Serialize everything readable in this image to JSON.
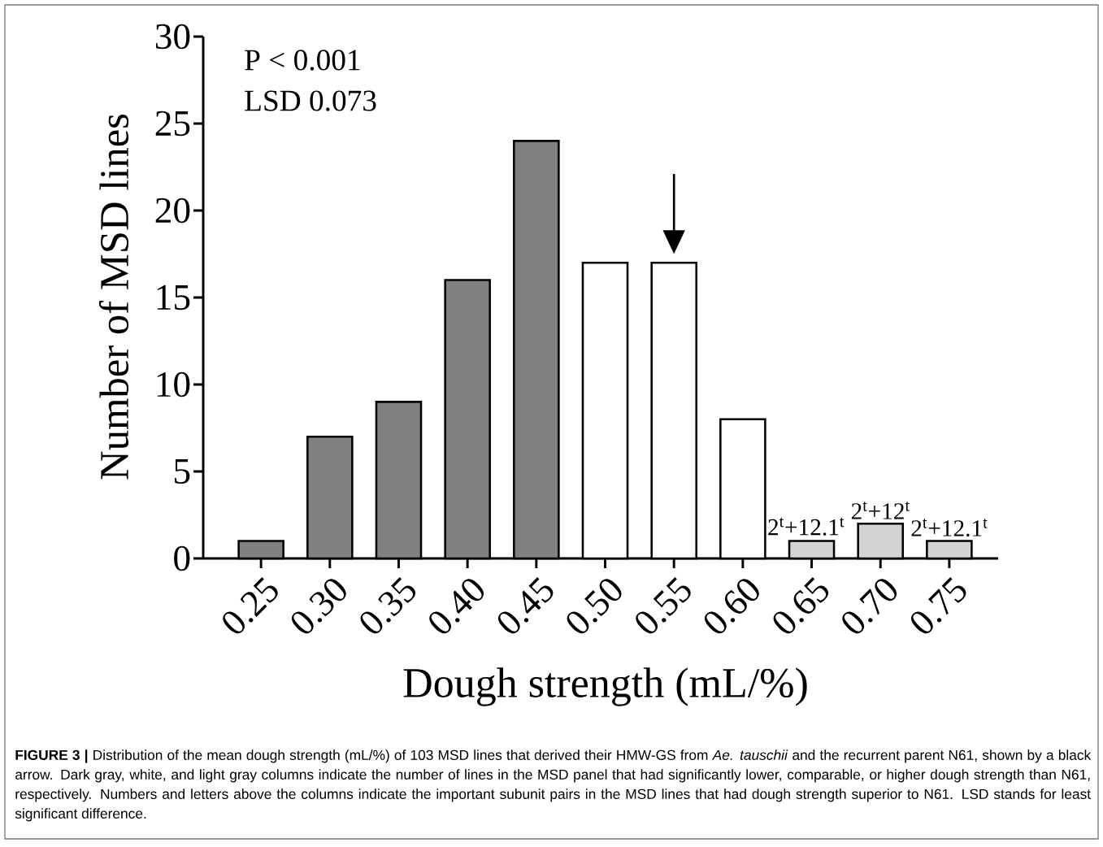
{
  "chart_data": {
    "type": "bar",
    "xlabel": "Dough strength (mL/%)",
    "ylabel": "Number of MSD lines",
    "categories": [
      "0.25",
      "0.30",
      "0.35",
      "0.40",
      "0.45",
      "0.50",
      "0.55",
      "0.60",
      "0.65",
      "0.70",
      "0.75"
    ],
    "values": [
      1,
      7,
      9,
      16,
      24,
      17,
      17,
      8,
      1,
      2,
      1
    ],
    "colors": [
      "#808080",
      "#808080",
      "#808080",
      "#808080",
      "#808080",
      "#ffffff",
      "#ffffff",
      "#ffffff",
      "#d3d3d3",
      "#d3d3d3",
      "#d3d3d3"
    ],
    "ylim": [
      0,
      30
    ],
    "yticks": [
      0,
      5,
      10,
      15,
      20,
      25,
      30
    ],
    "annotations": [
      "P < 0.001",
      "LSD 0.073",
      {
        "text": "2$^{t}$+12.1$^{t}$",
        "x": "0.65",
        "y": 1
      },
      {
        "text": "2$^{t}$+12$^{t}$",
        "x": "0.70",
        "y": 2
      },
      {
        "text": "2$^{t}$+12.1$^{t}$",
        "x": "0.75",
        "y": 1
      },
      "**FIGURE 3 |** Distribution of the mean dough strength (mL/%) of 103 MSD lines that derived their HMW-GS from *Ae. tauschii* and the recurrent parent N61, shown by a black arrow. Dark gray, white, and light gray columns indicate the number of lines in the MSD panel that had significantly lower, comparable, or higher dough strength than N61, respectively. Numbers and letters above the columns indicate the important subunit pairs in the MSD lines that had dough strength superior to N61. LSD stands for least significant difference."
    ]
  }
}
